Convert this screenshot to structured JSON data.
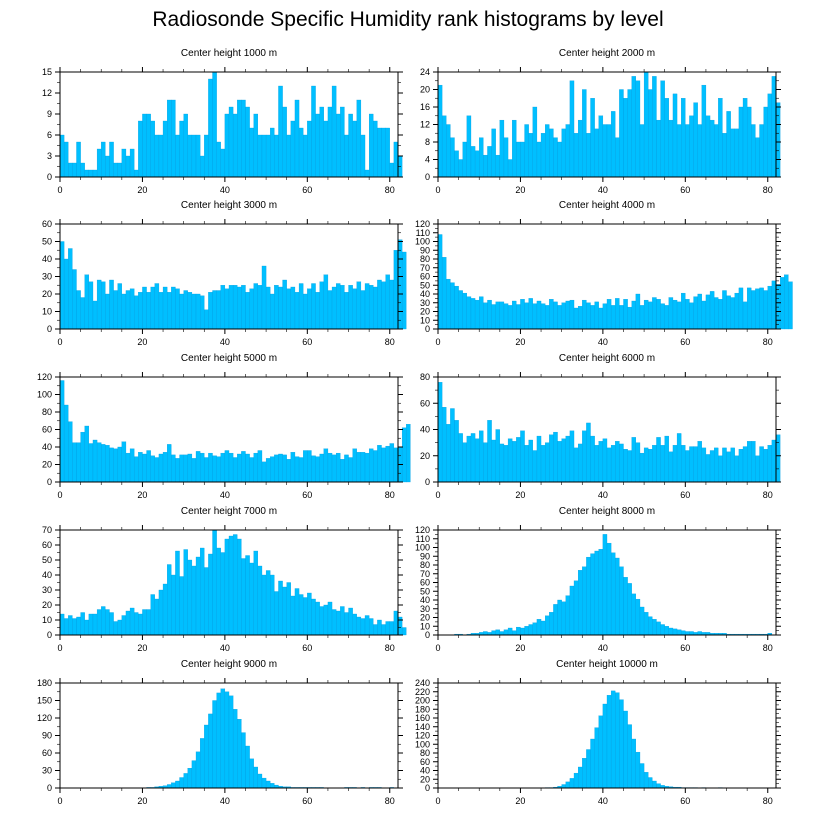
{
  "title": "Radiosonde Specific Humidity rank histograms by level",
  "colors": {
    "bar": "#00bfff",
    "bar_edge": "#0099dd",
    "axis": "#000000"
  },
  "chart_data": [
    {
      "type": "bar",
      "title": "Center height 1000 m",
      "xlim": [
        0,
        82
      ],
      "ylim": [
        0,
        15
      ],
      "xticks": [
        0,
        20,
        40,
        60,
        80
      ],
      "yticks": [
        0,
        3,
        6,
        9,
        12,
        15
      ],
      "values": [
        6,
        5,
        2,
        2,
        5,
        2,
        1,
        1,
        1,
        4,
        5,
        3,
        5,
        2,
        2,
        4,
        3,
        4,
        1,
        8,
        9,
        9,
        8,
        6,
        6,
        8,
        11,
        11,
        6,
        8,
        9,
        6,
        6,
        6,
        3,
        6,
        14,
        15,
        5,
        4,
        9,
        10,
        9,
        11,
        11,
        10,
        7,
        9,
        6,
        6,
        6,
        7,
        6,
        13,
        10,
        6,
        8,
        11,
        7,
        6,
        8,
        13,
        9,
        10,
        8,
        10,
        13,
        9,
        10,
        6,
        9,
        8,
        11,
        6,
        1,
        9,
        8,
        7,
        7,
        7,
        2,
        5,
        3
      ]
    },
    {
      "type": "bar",
      "title": "Center height 2000 m",
      "xlim": [
        0,
        82
      ],
      "ylim": [
        0,
        24
      ],
      "xticks": [
        0,
        20,
        40,
        60,
        80
      ],
      "yticks": [
        0,
        4,
        8,
        12,
        16,
        20,
        24
      ],
      "values": [
        21,
        14,
        12,
        9,
        6,
        4,
        8,
        14,
        7,
        6,
        9,
        5,
        7,
        11,
        5,
        13,
        9,
        4,
        13,
        8,
        8,
        12,
        10,
        16,
        8,
        10,
        12,
        11,
        9,
        8,
        11,
        12,
        22,
        10,
        13,
        20,
        10,
        18,
        11,
        14,
        12,
        12,
        15,
        9,
        20,
        18,
        20,
        23,
        22,
        12,
        24,
        20,
        23,
        13,
        22,
        18,
        13,
        19,
        12,
        18,
        12,
        14,
        17,
        12,
        21,
        14,
        13,
        12,
        18,
        10,
        15,
        11,
        11,
        16,
        18,
        16,
        12,
        9,
        12,
        16,
        19,
        23,
        17
      ]
    },
    {
      "type": "bar",
      "title": "Center height 3000 m",
      "xlim": [
        0,
        82
      ],
      "ylim": [
        0,
        60
      ],
      "xticks": [
        0,
        20,
        40,
        60,
        80
      ],
      "yticks": [
        0,
        10,
        20,
        30,
        40,
        50,
        60
      ],
      "values": [
        50,
        40,
        46,
        34,
        22,
        18,
        31,
        27,
        16,
        28,
        27,
        20,
        28,
        22,
        26,
        20,
        22,
        23,
        19,
        21,
        24,
        21,
        24,
        26,
        21,
        24,
        21,
        24,
        23,
        20,
        22,
        21,
        20,
        20,
        19,
        11,
        21,
        22,
        22,
        25,
        23,
        25,
        25,
        24,
        25,
        21,
        23,
        26,
        25,
        36,
        24,
        20,
        25,
        24,
        28,
        23,
        24,
        21,
        26,
        20,
        23,
        26,
        21,
        27,
        31,
        22,
        24,
        26,
        25,
        21,
        25,
        23,
        27,
        22,
        26,
        25,
        24,
        28,
        27,
        31,
        28,
        45,
        51,
        44
      ]
    },
    {
      "type": "bar",
      "title": "Center height 4000 m",
      "xlim": [
        0,
        82
      ],
      "ylim": [
        0,
        120
      ],
      "xticks": [
        0,
        20,
        40,
        60,
        80
      ],
      "yticks": [
        0,
        10,
        20,
        30,
        40,
        50,
        60,
        70,
        80,
        90,
        100,
        110,
        120
      ],
      "values": [
        108,
        82,
        57,
        53,
        49,
        44,
        41,
        37,
        35,
        33,
        37,
        30,
        33,
        28,
        31,
        31,
        29,
        27,
        32,
        28,
        34,
        30,
        35,
        29,
        32,
        29,
        27,
        34,
        31,
        27,
        30,
        32,
        33,
        24,
        26,
        33,
        30,
        27,
        31,
        24,
        29,
        34,
        27,
        35,
        27,
        34,
        25,
        32,
        40,
        27,
        33,
        31,
        36,
        34,
        29,
        27,
        36,
        33,
        31,
        41,
        34,
        30,
        37,
        40,
        32,
        39,
        43,
        36,
        34,
        44,
        38,
        36,
        41,
        47,
        31,
        47,
        44,
        46,
        47,
        44,
        49,
        55,
        51,
        59,
        62,
        54
      ]
    },
    {
      "type": "bar",
      "title": "Center height 5000 m",
      "xlim": [
        0,
        82
      ],
      "ylim": [
        0,
        120
      ],
      "xticks": [
        0,
        20,
        40,
        60,
        80
      ],
      "yticks": [
        0,
        20,
        40,
        60,
        80,
        100,
        120
      ],
      "values": [
        116,
        88,
        69,
        45,
        45,
        57,
        64,
        44,
        48,
        45,
        43,
        42,
        39,
        38,
        40,
        46,
        33,
        38,
        29,
        34,
        32,
        36,
        30,
        28,
        32,
        34,
        43,
        31,
        27,
        31,
        31,
        32,
        27,
        35,
        33,
        28,
        33,
        30,
        29,
        33,
        36,
        33,
        28,
        32,
        35,
        32,
        28,
        33,
        36,
        23,
        27,
        29,
        31,
        32,
        31,
        26,
        34,
        29,
        28,
        36,
        36,
        30,
        29,
        32,
        38,
        33,
        31,
        33,
        26,
        31,
        28,
        38,
        34,
        34,
        33,
        38,
        36,
        42,
        39,
        41,
        44,
        39,
        40,
        62,
        66
      ]
    },
    {
      "type": "bar",
      "title": "Center height 6000 m",
      "xlim": [
        0,
        82
      ],
      "ylim": [
        0,
        80
      ],
      "xticks": [
        0,
        20,
        40,
        60,
        80
      ],
      "yticks": [
        0,
        20,
        40,
        60,
        80
      ],
      "values": [
        76,
        57,
        44,
        56,
        47,
        37,
        30,
        35,
        37,
        33,
        39,
        30,
        47,
        32,
        40,
        29,
        28,
        33,
        31,
        34,
        39,
        28,
        32,
        24,
        35,
        28,
        30,
        36,
        38,
        31,
        33,
        35,
        39,
        26,
        29,
        39,
        45,
        35,
        28,
        31,
        33,
        26,
        28,
        31,
        29,
        25,
        24,
        34,
        30,
        22,
        26,
        25,
        28,
        34,
        28,
        35,
        23,
        28,
        37,
        28,
        24,
        27,
        27,
        31,
        26,
        21,
        24,
        26,
        20,
        26,
        23,
        26,
        20,
        25,
        27,
        31,
        31,
        20,
        27,
        25,
        28,
        32,
        36
      ]
    },
    {
      "type": "bar",
      "title": "Center height 7000 m",
      "xlim": [
        0,
        82
      ],
      "ylim": [
        0,
        70
      ],
      "xticks": [
        0,
        20,
        40,
        60,
        80
      ],
      "yticks": [
        0,
        10,
        20,
        30,
        40,
        50,
        60,
        70
      ],
      "values": [
        14,
        11,
        13,
        11,
        12,
        15,
        10,
        14,
        14,
        17,
        19,
        17,
        15,
        9,
        10,
        13,
        16,
        18,
        15,
        14,
        17,
        17,
        27,
        24,
        30,
        34,
        47,
        40,
        56,
        39,
        57,
        50,
        46,
        52,
        58,
        45,
        54,
        70,
        58,
        55,
        64,
        66,
        67,
        64,
        51,
        53,
        48,
        56,
        46,
        40,
        43,
        40,
        29,
        36,
        32,
        35,
        26,
        31,
        27,
        25,
        28,
        24,
        22,
        19,
        20,
        22,
        17,
        16,
        19,
        15,
        18,
        14,
        12,
        11,
        13,
        11,
        7,
        10,
        7,
        9,
        9,
        16,
        12,
        5
      ]
    },
    {
      "type": "bar",
      "title": "Center height 8000 m",
      "xlim": [
        0,
        82
      ],
      "ylim": [
        0,
        120
      ],
      "xticks": [
        0,
        20,
        40,
        60,
        80
      ],
      "yticks": [
        0,
        10,
        20,
        30,
        40,
        50,
        60,
        70,
        80,
        90,
        100,
        110,
        120
      ],
      "values": [
        0,
        0,
        0,
        0,
        1,
        1,
        0,
        1,
        2,
        2,
        3,
        4,
        3,
        5,
        6,
        4,
        6,
        8,
        5,
        9,
        8,
        10,
        12,
        14,
        18,
        16,
        22,
        26,
        35,
        40,
        38,
        45,
        56,
        62,
        74,
        78,
        89,
        93,
        96,
        98,
        115,
        105,
        94,
        88,
        78,
        66,
        59,
        47,
        41,
        32,
        26,
        21,
        18,
        15,
        12,
        10,
        8,
        7,
        6,
        5,
        4,
        4,
        3,
        4,
        3,
        3,
        2,
        2,
        2,
        2,
        1,
        1,
        1,
        1,
        1,
        1,
        1,
        1,
        1,
        1,
        2,
        0,
        0
      ]
    },
    {
      "type": "bar",
      "title": "Center height 9000 m",
      "xlim": [
        0,
        82
      ],
      "ylim": [
        0,
        180
      ],
      "xticks": [
        0,
        20,
        40,
        60,
        80
      ],
      "yticks": [
        0,
        30,
        60,
        90,
        120,
        150,
        180
      ],
      "values": [
        0,
        0,
        0,
        0,
        0,
        0,
        0,
        0,
        0,
        0,
        0,
        0,
        0,
        0,
        0,
        0,
        0,
        0,
        0,
        0,
        0,
        1,
        1,
        2,
        3,
        4,
        6,
        9,
        12,
        18,
        25,
        34,
        47,
        62,
        85,
        108,
        127,
        150,
        163,
        170,
        165,
        158,
        135,
        118,
        95,
        72,
        50,
        36,
        24,
        17,
        12,
        8,
        5,
        3,
        2,
        2,
        1,
        1,
        1,
        1,
        1,
        1,
        1,
        1,
        0,
        0,
        0,
        0,
        0,
        1,
        1,
        1,
        0,
        1,
        0,
        1,
        1,
        1,
        0,
        0,
        1,
        0,
        0
      ]
    },
    {
      "type": "bar",
      "title": "Center height 10000 m",
      "xlim": [
        0,
        82
      ],
      "ylim": [
        0,
        240
      ],
      "xticks": [
        0,
        20,
        40,
        60,
        80
      ],
      "yticks": [
        0,
        20,
        40,
        60,
        80,
        100,
        120,
        140,
        160,
        180,
        200,
        220,
        240
      ],
      "values": [
        0,
        0,
        0,
        0,
        0,
        0,
        0,
        0,
        0,
        0,
        0,
        0,
        0,
        0,
        0,
        0,
        0,
        0,
        0,
        0,
        0,
        0,
        0,
        0,
        0,
        0,
        1,
        1,
        2,
        4,
        8,
        14,
        22,
        34,
        48,
        68,
        88,
        112,
        138,
        165,
        192,
        212,
        222,
        218,
        202,
        176,
        145,
        112,
        82,
        56,
        36,
        24,
        16,
        10,
        6,
        4,
        3,
        2,
        2,
        1,
        1,
        1,
        1,
        0,
        1,
        0,
        0,
        0,
        1,
        0,
        0,
        0,
        0,
        0,
        0,
        0,
        0,
        0,
        0,
        0,
        0,
        0,
        0
      ]
    }
  ]
}
